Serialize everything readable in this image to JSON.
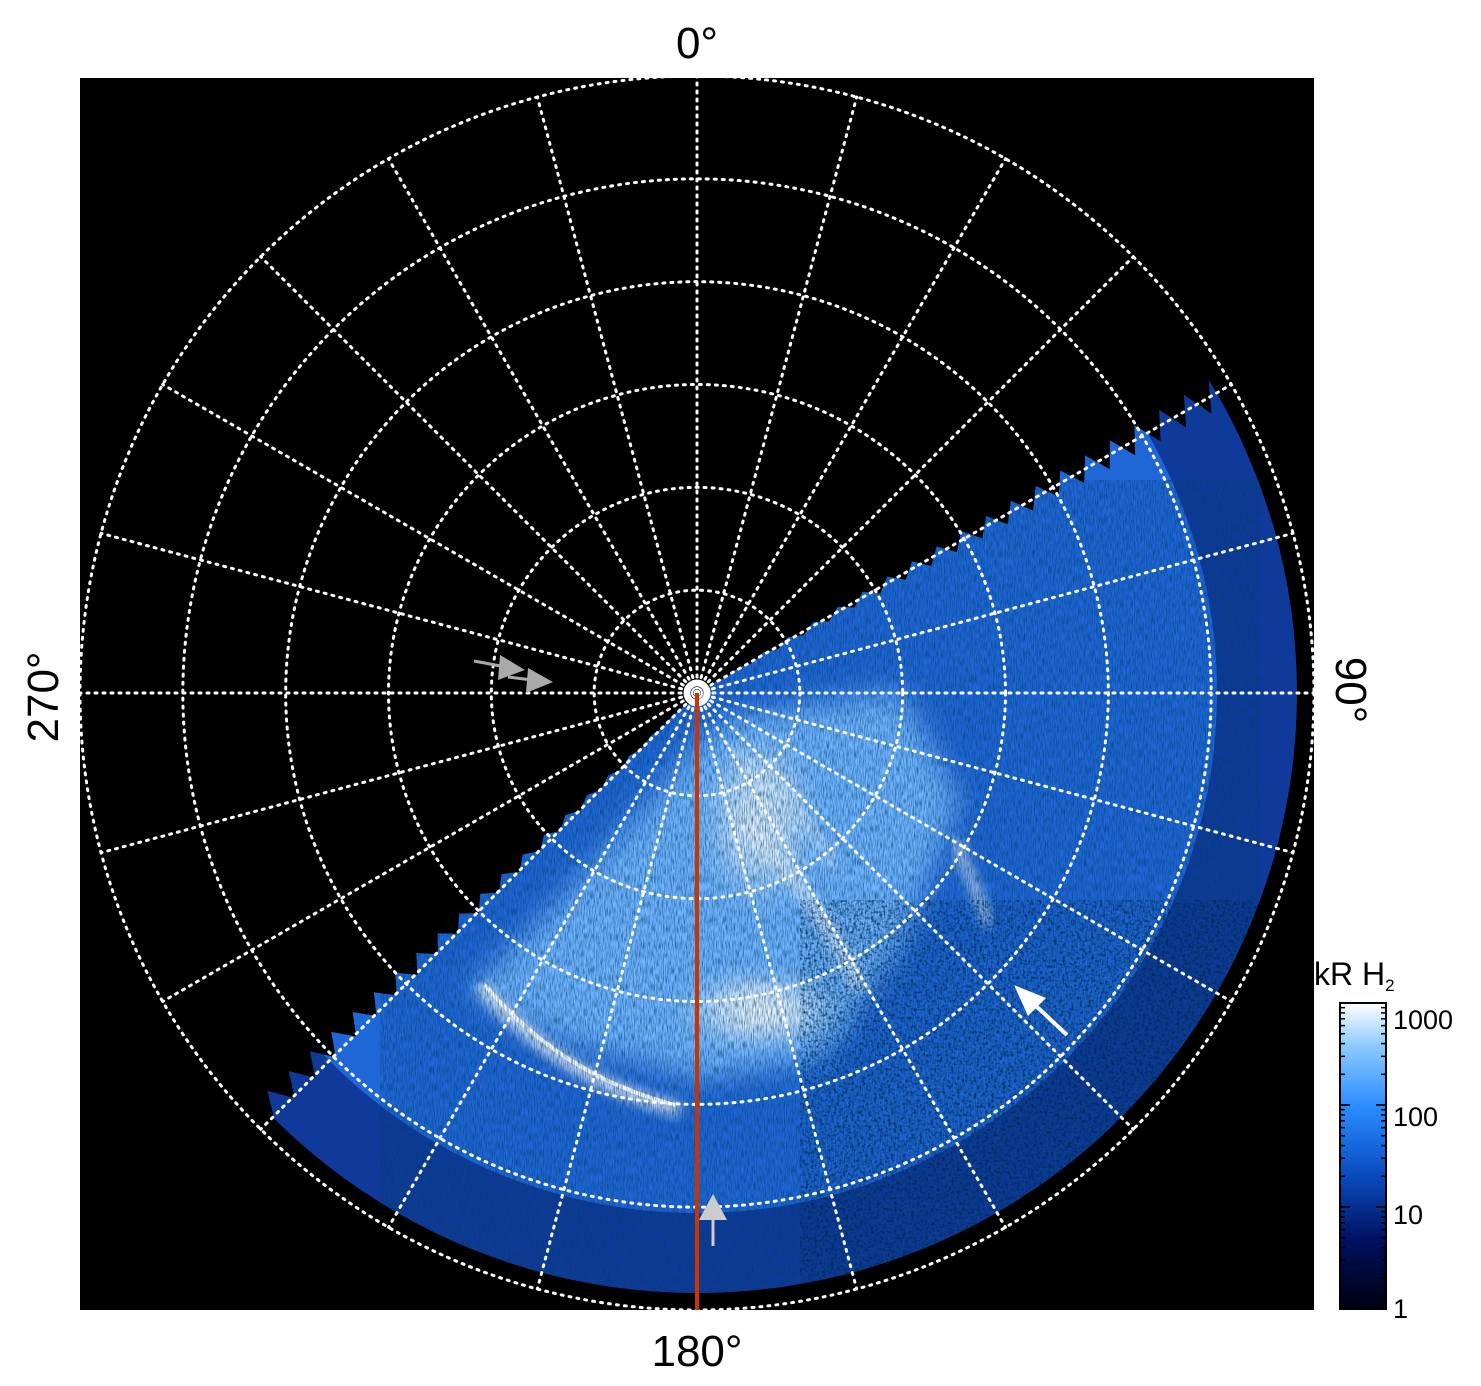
{
  "figure": {
    "direction_labels": {
      "top": "0°",
      "right": "90°",
      "bottom": "180°",
      "left": "270°"
    },
    "colorbar": {
      "title": "kR H",
      "title_subscript": "2",
      "scale": "log",
      "ticks": [
        "1000",
        "100",
        "10",
        "1"
      ],
      "colors": [
        "#000010",
        "#00105e",
        "#0a4fc4",
        "#2a8cff",
        "#8ccaff",
        "#ffffff"
      ]
    },
    "grid": {
      "style": "dotted",
      "color": "#ffffff",
      "rings": 6,
      "spokes_every_deg": 15
    },
    "meridian_line_color": "#cc3300",
    "marker_arrows": [
      {
        "name": "grey-arrow-left-1",
        "color": "#aaaaaa"
      },
      {
        "name": "grey-arrow-left-2",
        "color": "#aaaaaa"
      },
      {
        "name": "grey-arrow-bottom",
        "color": "#cccccc"
      },
      {
        "name": "white-arrow-right",
        "color": "#ffffff"
      }
    ]
  }
}
